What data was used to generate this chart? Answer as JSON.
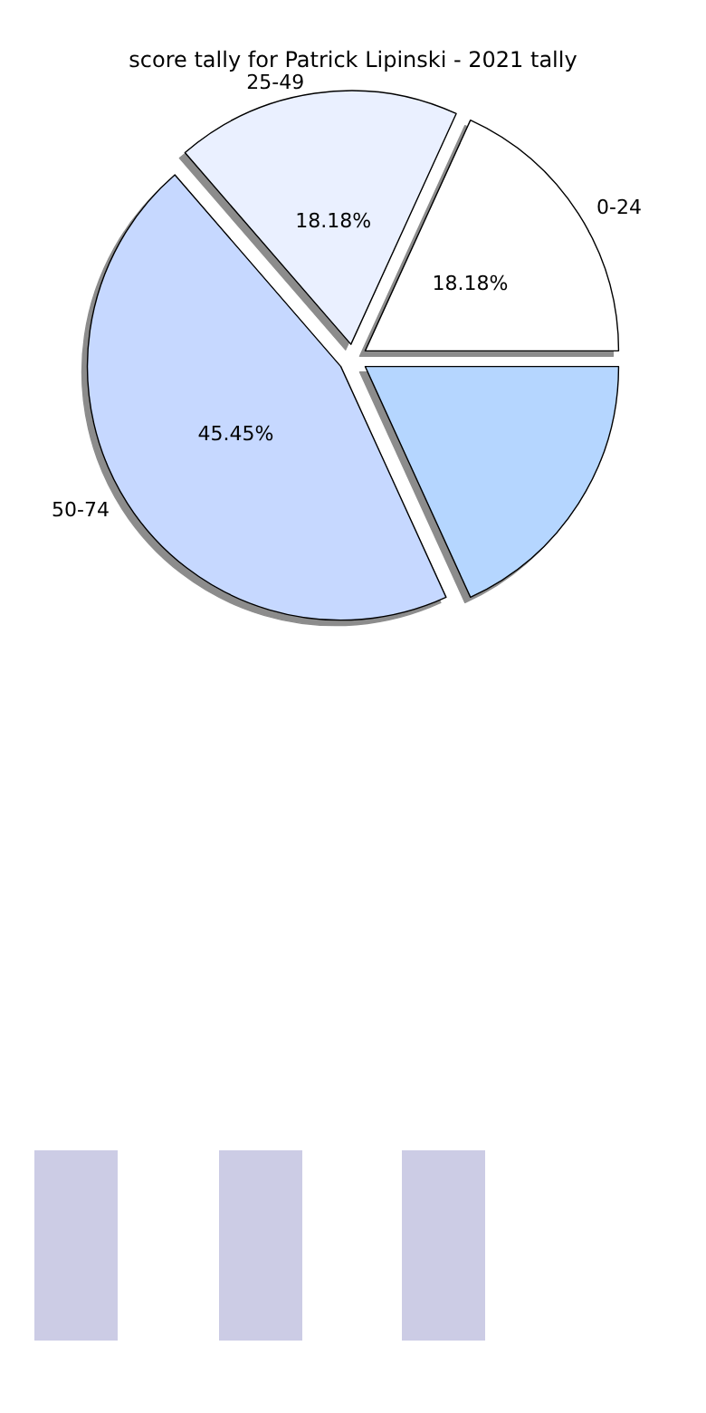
{
  "chart_data": {
    "type": "pie",
    "title": "score tally for Patrick Lipinski - 2021 tally",
    "categories": [
      "0-24",
      "25-49",
      "50-74",
      null
    ],
    "values": [
      18.18,
      18.18,
      45.45,
      18.18
    ],
    "colors": [
      "#ffffff",
      "#eaf0ff",
      "#c6d8ff",
      "#b5d6ff"
    ],
    "value_labels": [
      "18.18%",
      "18.18%",
      "45.45%",
      null
    ],
    "legend": false
  }
}
